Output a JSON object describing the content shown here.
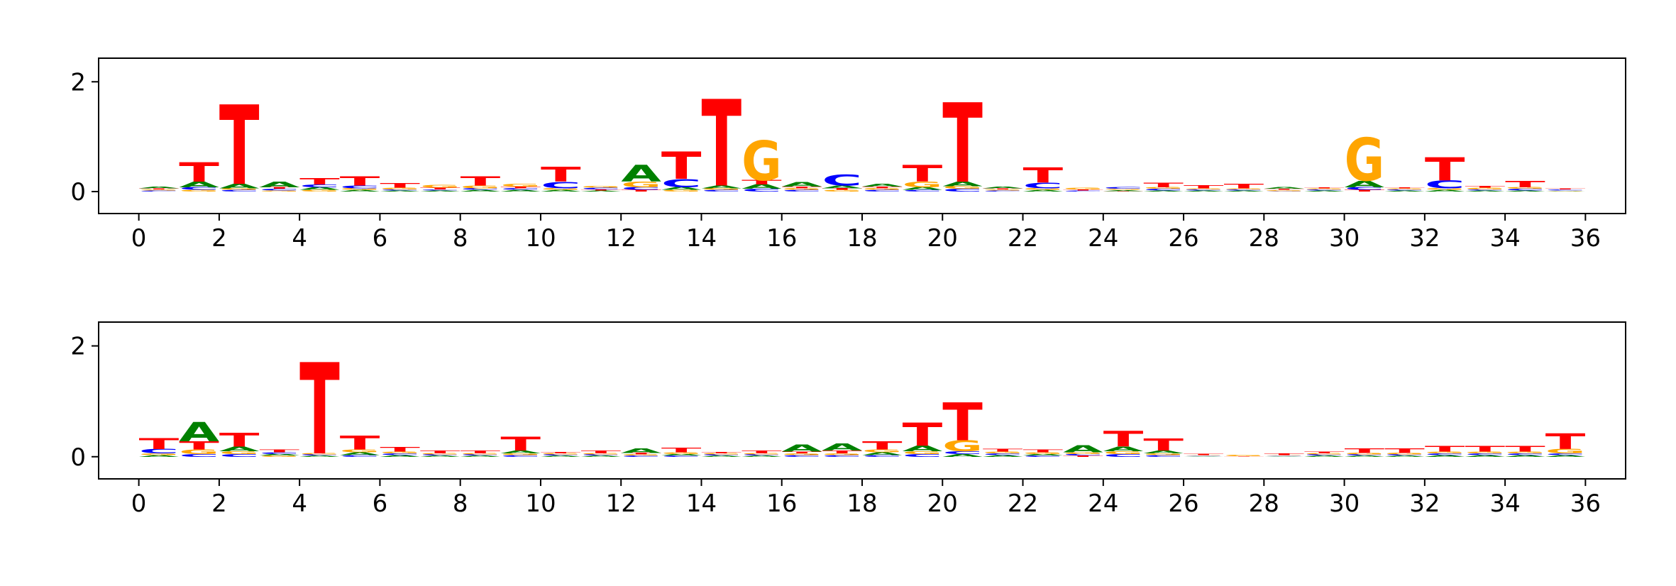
{
  "chart_data": [
    {
      "type": "logo",
      "x": [
        0,
        1,
        2,
        3,
        4,
        5,
        6,
        7,
        8,
        9,
        10,
        11,
        12,
        13,
        14,
        15,
        16,
        17,
        18,
        19,
        20,
        21,
        22,
        23,
        24,
        25,
        26,
        27,
        28,
        29,
        30,
        31,
        32,
        33,
        34,
        35
      ],
      "xlim": [
        -1,
        37
      ],
      "ylim": [
        -0.4,
        2.43
      ],
      "xticks": [
        0,
        2,
        4,
        6,
        8,
        10,
        12,
        14,
        16,
        18,
        20,
        22,
        24,
        26,
        28,
        30,
        32,
        34,
        36
      ],
      "yticks": [
        0,
        2
      ],
      "series": [
        {
          "name": "A",
          "color": "#008000",
          "values": [
            0.03,
            0.1,
            0.08,
            0.1,
            0.05,
            0.03,
            0.02,
            0.02,
            0.03,
            0.03,
            0.03,
            0.02,
            0.3,
            0.05,
            0.05,
            0.08,
            0.08,
            0.05,
            0.05,
            0.05,
            0.08,
            0.03,
            0.03,
            0,
            0.02,
            0.02,
            0.02,
            0.02,
            0.03,
            0.02,
            0.12,
            0.02,
            0.03,
            0.02,
            0.02,
            0.01
          ]
        },
        {
          "name": "C",
          "color": "#0000ff",
          "values": [
            0.02,
            0.05,
            0.03,
            0.03,
            0.05,
            0.05,
            0.02,
            0.02,
            0.03,
            0.03,
            0.12,
            0.03,
            0.05,
            0.15,
            0.03,
            0.05,
            0.03,
            0.2,
            0.03,
            0.03,
            0.05,
            0.02,
            0.1,
            0.02,
            0.03,
            0.03,
            0.02,
            0.02,
            0.01,
            0.02,
            0.05,
            0.02,
            0.15,
            0.02,
            0.03,
            0.02
          ]
        },
        {
          "name": "G",
          "color": "#ffa500",
          "values": [
            0.02,
            0.03,
            0.03,
            0.02,
            0.03,
            0.03,
            0.03,
            0.05,
            0.05,
            0.05,
            0.03,
            0.03,
            0.1,
            0.03,
            0.03,
            0.72,
            0.03,
            0.03,
            0.03,
            0.1,
            0.05,
            0.02,
            0.03,
            0.03,
            0.02,
            0.03,
            0.02,
            0.02,
            0.02,
            0.02,
            0.78,
            0.02,
            0.03,
            0.03,
            0.03,
            0.01
          ]
        },
        {
          "name": "T",
          "color": "#ff0000",
          "values": [
            0.02,
            0.35,
            1.45,
            0.03,
            0.12,
            0.17,
            0.08,
            0.03,
            0.17,
            0.03,
            0.27,
            0.02,
            0.03,
            0.5,
            1.58,
            0.08,
            0.03,
            0.03,
            0.03,
            0.3,
            1.45,
            0.02,
            0.28,
            0.02,
            0.01,
            0.08,
            0.06,
            0.08,
            0.02,
            0.02,
            0.03,
            0.02,
            0.42,
            0.03,
            0.12,
            0.02
          ]
        }
      ]
    },
    {
      "type": "logo",
      "x": [
        0,
        1,
        2,
        3,
        4,
        5,
        6,
        7,
        8,
        9,
        10,
        11,
        12,
        13,
        14,
        15,
        16,
        17,
        18,
        19,
        20,
        21,
        22,
        23,
        24,
        25,
        26,
        27,
        28,
        29,
        30,
        31,
        32,
        33,
        34,
        35
      ],
      "xlim": [
        -1,
        37
      ],
      "ylim": [
        -0.4,
        2.43
      ],
      "xticks": [
        0,
        2,
        4,
        6,
        8,
        10,
        12,
        14,
        16,
        18,
        20,
        22,
        24,
        26,
        28,
        30,
        32,
        34,
        36
      ],
      "yticks": [
        0,
        2
      ],
      "series": [
        {
          "name": "A",
          "color": "#008000",
          "values": [
            0.03,
            0.35,
            0.08,
            0.03,
            0.02,
            0.05,
            0.03,
            0.02,
            0.02,
            0.05,
            0.02,
            0.02,
            0.08,
            0.03,
            0.02,
            0.02,
            0.12,
            0.12,
            0.05,
            0.1,
            0.05,
            0.03,
            0.03,
            0.12,
            0.08,
            0.05,
            0.01,
            0,
            0.01,
            0.02,
            0.02,
            0.02,
            0.03,
            0.03,
            0.03,
            0.03
          ]
        },
        {
          "name": "C",
          "color": "#0000ff",
          "values": [
            0.08,
            0.05,
            0.05,
            0.03,
            0.02,
            0.03,
            0.03,
            0.02,
            0.02,
            0.03,
            0.02,
            0.02,
            0.02,
            0.02,
            0.02,
            0.02,
            0.03,
            0.03,
            0.03,
            0.05,
            0.05,
            0.03,
            0.02,
            0.03,
            0.05,
            0.03,
            0.01,
            0,
            0.01,
            0.02,
            0.02,
            0.02,
            0.03,
            0.03,
            0.03,
            0.03
          ]
        },
        {
          "name": "G",
          "color": "#ffa500",
          "values": [
            0.03,
            0.08,
            0.05,
            0.02,
            0.02,
            0.05,
            0.03,
            0.02,
            0.02,
            0.03,
            0.02,
            0.02,
            0.02,
            0.03,
            0.02,
            0.02,
            0.03,
            0.03,
            0.05,
            0.05,
            0.2,
            0.03,
            0.03,
            0.03,
            0.05,
            0.03,
            0.01,
            0.02,
            0.01,
            0.02,
            0.03,
            0.03,
            0.03,
            0.03,
            0.03,
            0.08
          ]
        },
        {
          "name": "T",
          "color": "#ff0000",
          "values": [
            0.2,
            0.15,
            0.25,
            0.05,
            1.65,
            0.25,
            0.08,
            0.05,
            0.05,
            0.25,
            0.02,
            0.05,
            0.03,
            0.08,
            0.02,
            0.05,
            0.03,
            0.05,
            0.15,
            0.42,
            0.68,
            0.05,
            0.05,
            0.02,
            0.28,
            0.22,
            0.02,
            0.01,
            0.03,
            0.03,
            0.08,
            0.08,
            0.1,
            0.1,
            0.1,
            0.28
          ]
        }
      ]
    }
  ]
}
